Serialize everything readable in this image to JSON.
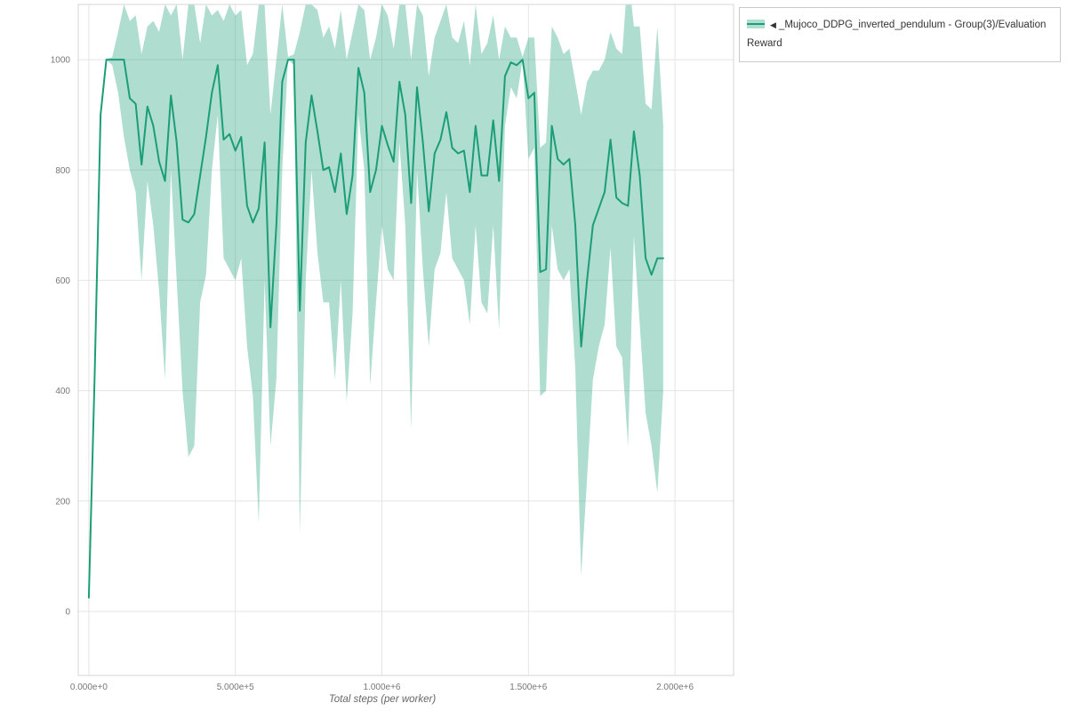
{
  "legend": {
    "triangle_icon": "◀",
    "label": "_Mujoco_DDPG_inverted_pendulum - Group(3)/Evaluation Reward"
  },
  "chart_data": {
    "type": "line",
    "title": "",
    "xlabel": "Total steps (per worker)",
    "ylabel": "",
    "grid": true,
    "legend_position": "top-right",
    "xlim": [
      -36000,
      2200000
    ],
    "ylim": [
      -116,
      1100
    ],
    "x_tick_values": [
      0,
      500000,
      1000000,
      1500000,
      2000000
    ],
    "x_tick_labels": [
      "0.000e+0",
      "5.000e+5",
      "1.000e+6",
      "1.500e+6",
      "2.000e+6"
    ],
    "y_tick_values": [
      0,
      200,
      400,
      600,
      800,
      1000
    ],
    "y_tick_labels": [
      "0",
      "200",
      "400",
      "600",
      "800",
      "1000"
    ],
    "colors": {
      "line": "#1b9e77",
      "band": "#1b9e77",
      "band_opacity": 0.35,
      "grid": "#e4e4e4",
      "border": "#d6d6d6",
      "tick_text": "#777777",
      "axis_title": "#666666"
    },
    "series": [
      {
        "name": "_Mujoco_DDPG_inverted_pendulum - Group(3)/Evaluation Reward",
        "x": [
          0,
          20000,
          40000,
          60000,
          80000,
          100000,
          120000,
          140000,
          160000,
          180000,
          200000,
          220000,
          240000,
          260000,
          280000,
          300000,
          320000,
          340000,
          360000,
          380000,
          400000,
          420000,
          440000,
          460000,
          480000,
          500000,
          520000,
          540000,
          560000,
          580000,
          600000,
          620000,
          640000,
          660000,
          680000,
          700000,
          720000,
          740000,
          760000,
          780000,
          800000,
          820000,
          840000,
          860000,
          880000,
          900000,
          920000,
          940000,
          960000,
          980000,
          1000000,
          1020000,
          1040000,
          1060000,
          1080000,
          1100000,
          1120000,
          1140000,
          1160000,
          1180000,
          1200000,
          1220000,
          1240000,
          1260000,
          1280000,
          1300000,
          1320000,
          1340000,
          1360000,
          1380000,
          1400000,
          1420000,
          1440000,
          1460000,
          1480000,
          1500000,
          1520000,
          1540000,
          1560000,
          1580000,
          1600000,
          1620000,
          1640000,
          1660000,
          1680000,
          1700000,
          1720000,
          1740000,
          1760000,
          1780000,
          1800000,
          1820000,
          1840000,
          1860000,
          1880000,
          1900000,
          1920000,
          1940000,
          1960000
        ],
        "mean": [
          25,
          430,
          900,
          1000,
          1000,
          1000,
          1000,
          930,
          920,
          810,
          915,
          880,
          815,
          780,
          935,
          850,
          710,
          705,
          720,
          790,
          860,
          940,
          990,
          855,
          865,
          835,
          860,
          735,
          705,
          730,
          850,
          515,
          700,
          960,
          1000,
          1000,
          545,
          850,
          935,
          870,
          800,
          805,
          760,
          830,
          720,
          790,
          985,
          940,
          760,
          800,
          880,
          845,
          815,
          960,
          900,
          740,
          950,
          850,
          725,
          830,
          855,
          905,
          840,
          830,
          835,
          760,
          880,
          790,
          790,
          890,
          780,
          970,
          995,
          990,
          1000,
          930,
          940,
          615,
          620,
          880,
          820,
          810,
          820,
          700,
          480,
          600,
          700,
          730,
          760,
          855,
          750,
          740,
          735,
          870,
          790,
          640,
          610,
          640,
          640
        ],
        "lower": [
          25,
          430,
          900,
          1000,
          990,
          940,
          860,
          800,
          760,
          600,
          780,
          700,
          580,
          420,
          800,
          600,
          400,
          280,
          300,
          560,
          610,
          800,
          900,
          640,
          620,
          600,
          640,
          480,
          390,
          160,
          600,
          300,
          420,
          800,
          1000,
          990,
          140,
          600,
          800,
          650,
          560,
          560,
          420,
          600,
          380,
          540,
          900,
          800,
          410,
          560,
          700,
          620,
          600,
          850,
          700,
          330,
          800,
          620,
          480,
          620,
          650,
          760,
          640,
          620,
          600,
          520,
          700,
          560,
          540,
          700,
          510,
          880,
          950,
          930,
          1000,
          820,
          840,
          390,
          400,
          700,
          620,
          600,
          620,
          440,
          65,
          240,
          420,
          480,
          520,
          660,
          480,
          460,
          300,
          680,
          520,
          360,
          300,
          215,
          400
        ],
        "upper": [
          25,
          430,
          900,
          1000,
          1005,
          1050,
          1100,
          1070,
          1080,
          1010,
          1060,
          1070,
          1050,
          1100,
          1080,
          1100,
          1000,
          1100,
          1100,
          1030,
          1100,
          1080,
          1090,
          1070,
          1100,
          1080,
          1090,
          990,
          1010,
          1100,
          1100,
          900,
          1000,
          1100,
          1005,
          1010,
          1050,
          1100,
          1100,
          1090,
          1040,
          1060,
          1020,
          1090,
          1000,
          1050,
          1100,
          1090,
          1000,
          1040,
          1100,
          1080,
          1020,
          1100,
          1100,
          1000,
          1100,
          1080,
          970,
          1040,
          1070,
          1100,
          1040,
          1030,
          1070,
          990,
          1100,
          1010,
          1030,
          1080,
          1000,
          1060,
          1040,
          1040,
          1005,
          1040,
          1040,
          840,
          850,
          1060,
          1040,
          1010,
          1020,
          960,
          900,
          960,
          980,
          980,
          1000,
          1050,
          1020,
          1010,
          1160,
          1060,
          1060,
          920,
          910,
          1060,
          880
        ]
      }
    ]
  }
}
